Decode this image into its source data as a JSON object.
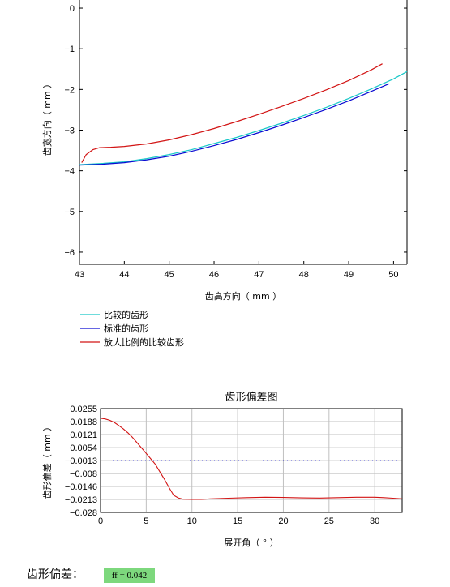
{
  "colors": {
    "compare": "#19c8c8",
    "standard": "#0a0ad2",
    "scaled": "#d21414",
    "deviation": "#d21414",
    "ff_bg": "#7dd87d"
  },
  "chart_data": [
    {
      "type": "line",
      "title": "",
      "xlabel": "齿高方向（ mm ）",
      "ylabel": "齿宽方向（ mm ）",
      "xlim": [
        43,
        50.3
      ],
      "ylim": [
        -6.3,
        0.2
      ],
      "xticks": [
        "43",
        "44",
        "45",
        "46",
        "47",
        "48",
        "49",
        "50"
      ],
      "yticks": [
        "0",
        "−1",
        "−2",
        "−3",
        "−4",
        "−5",
        "−6"
      ],
      "grid": false,
      "legend_position": "bottom-left",
      "series": [
        {
          "name": "比较的齿形",
          "color": "#19c8c8",
          "x": [
            43.0,
            43.5,
            44.0,
            44.5,
            45.0,
            45.5,
            46.0,
            46.5,
            47.0,
            47.5,
            48.0,
            48.5,
            49.0,
            49.5,
            50.0,
            50.3
          ],
          "y": [
            -3.85,
            -3.82,
            -3.78,
            -3.7,
            -3.6,
            -3.48,
            -3.33,
            -3.18,
            -3.01,
            -2.83,
            -2.64,
            -2.44,
            -2.22,
            -1.99,
            -1.74,
            -1.56
          ]
        },
        {
          "name": "标准的齿形",
          "color": "#0a0ad2",
          "x": [
            43.0,
            43.5,
            44.0,
            44.5,
            45.0,
            45.5,
            46.0,
            46.5,
            47.0,
            47.5,
            48.0,
            48.5,
            49.0,
            49.5,
            49.9
          ],
          "y": [
            -3.86,
            -3.84,
            -3.8,
            -3.73,
            -3.64,
            -3.52,
            -3.38,
            -3.23,
            -3.06,
            -2.88,
            -2.69,
            -2.49,
            -2.28,
            -2.05,
            -1.86
          ]
        },
        {
          "name": "放大比例的比较齿形",
          "color": "#d21414",
          "x": [
            43.05,
            43.15,
            43.3,
            43.45,
            43.7,
            44.0,
            44.5,
            45.0,
            45.5,
            46.0,
            46.5,
            47.0,
            47.5,
            48.0,
            48.5,
            49.0,
            49.5,
            49.75
          ],
          "y": [
            -3.8,
            -3.6,
            -3.48,
            -3.43,
            -3.42,
            -3.4,
            -3.34,
            -3.24,
            -3.11,
            -2.96,
            -2.79,
            -2.61,
            -2.42,
            -2.22,
            -2.01,
            -1.78,
            -1.52,
            -1.37
          ]
        }
      ]
    },
    {
      "type": "line",
      "title": "齿形偏差图",
      "xlabel": "展开角（ ° ）",
      "ylabel": "齿形偏差（ mm ）",
      "xlim": [
        0,
        33
      ],
      "ylim": [
        -0.028,
        0.0255
      ],
      "xticks": [
        "0",
        "5",
        "10",
        "15",
        "20",
        "25",
        "30"
      ],
      "yticks": [
        "0.0255",
        "0.0188",
        "0.0121",
        "0.0054",
        "−0.0013",
        "−0.008",
        "−0.0146",
        "−0.0213",
        "−0.028"
      ],
      "grid": true,
      "reference_line": -0.0013,
      "series": [
        {
          "color": "#d21414",
          "x": [
            0,
            0.5,
            1,
            1.5,
            2,
            2.5,
            3,
            3.5,
            4,
            4.5,
            5,
            5.5,
            6,
            6.5,
            7,
            7.5,
            8,
            8.5,
            9,
            10,
            11,
            12,
            14,
            16,
            18,
            20,
            22,
            24,
            26,
            28,
            30,
            31,
            32,
            33
          ],
          "y": [
            0.0205,
            0.0202,
            0.0195,
            0.0184,
            0.0168,
            0.015,
            0.013,
            0.0106,
            0.0079,
            0.0052,
            0.0024,
            -0.0004,
            -0.0032,
            -0.0072,
            -0.011,
            -0.0152,
            -0.0192,
            -0.0205,
            -0.0212,
            -0.0213,
            -0.0213,
            -0.021,
            -0.0207,
            -0.0204,
            -0.0202,
            -0.0203,
            -0.0205,
            -0.0206,
            -0.0204,
            -0.0202,
            -0.0202,
            -0.0204,
            -0.0207,
            -0.021
          ]
        }
      ]
    }
  ],
  "ff": {
    "label": "齿形偏差：",
    "value": "ff = 0.042"
  }
}
